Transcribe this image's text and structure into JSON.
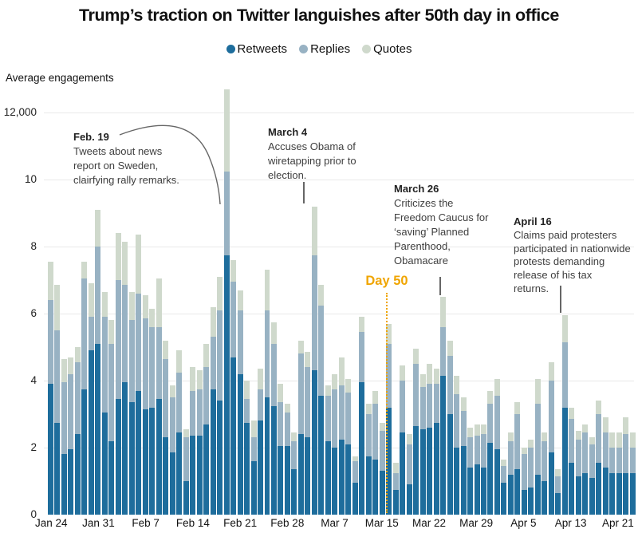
{
  "title": "Trump’s traction on Twitter languishes after 50th day in office",
  "legend": [
    {
      "label": "Retweets",
      "color": "#1e6d9c"
    },
    {
      "label": "Replies",
      "color": "#98b2c3"
    },
    {
      "label": "Quotes",
      "color": "#cfd9cc"
    }
  ],
  "y_axis": {
    "title": "Average engagements",
    "ticks": [
      {
        "value": 12000,
        "label": "12,000"
      },
      {
        "value": 10000,
        "label": "10"
      },
      {
        "value": 8000,
        "label": "8"
      },
      {
        "value": 6000,
        "label": "6"
      },
      {
        "value": 4000,
        "label": "4"
      },
      {
        "value": 2000,
        "label": "2"
      },
      {
        "value": 0,
        "label": "0"
      }
    ]
  },
  "x_axis": {
    "labels": [
      "Jan 24",
      "Jan 31",
      "Feb 7",
      "Feb 14",
      "Feb 21",
      "Feb 28",
      "Mar 7",
      "Mar 15",
      "Mar 22",
      "Mar 29",
      "Apr 5",
      "Apr 13",
      "Apr 21"
    ],
    "label_every_n_bars": 7
  },
  "annotations": [
    {
      "date": "Feb. 19",
      "text": "Tweets about news\nreport on Sweden,\nclairfying rally remarks.",
      "bar_index": 26
    },
    {
      "date": "March 4",
      "text": "Accuses Obama of\nwiretapping prior to\nelection.",
      "bar_index": 39
    },
    {
      "date": "March 26",
      "text": "Criticizes the\nFreedom Caucus for\n‘saving’ Planned\nParenthood,\nObamacare",
      "bar_index": 58
    },
    {
      "date": "April 16",
      "text": "Claims paid protesters\nparticipated in nationwide\nprotests demanding\nrelease of his tax\nreturns.",
      "bar_index": 76
    }
  ],
  "day50": {
    "label": "Day 50",
    "color": "#f0a500",
    "after_bar_index": 49
  },
  "chart_data": {
    "type": "bar",
    "stacked": true,
    "series": [
      "Retweets",
      "Replies",
      "Quotes"
    ],
    "title": "Trump’s traction on Twitter languishes after 50th day in office",
    "ylabel": "Average engagements",
    "ylim": [
      0,
      12800
    ],
    "grid": true,
    "legend_position": "top-center",
    "start_label": "Jan 24",
    "end_label": "Apr 21",
    "bars": [
      {
        "retweets": 3900,
        "replies": 2500,
        "quotes": 1150
      },
      {
        "retweets": 2750,
        "replies": 2750,
        "quotes": 1350
      },
      {
        "retweets": 1800,
        "replies": 2150,
        "quotes": 700
      },
      {
        "retweets": 1950,
        "replies": 2250,
        "quotes": 500
      },
      {
        "retweets": 2400,
        "replies": 2150,
        "quotes": 450
      },
      {
        "retweets": 3750,
        "replies": 3300,
        "quotes": 500
      },
      {
        "retweets": 4900,
        "replies": 1000,
        "quotes": 1000
      },
      {
        "retweets": 5100,
        "replies": 2900,
        "quotes": 1100
      },
      {
        "retweets": 3050,
        "replies": 2850,
        "quotes": 750
      },
      {
        "retweets": 2200,
        "replies": 2900,
        "quotes": 700
      },
      {
        "retweets": 3450,
        "replies": 3550,
        "quotes": 1400
      },
      {
        "retweets": 3950,
        "replies": 2900,
        "quotes": 1300
      },
      {
        "retweets": 3350,
        "replies": 2450,
        "quotes": 850
      },
      {
        "retweets": 3700,
        "replies": 2900,
        "quotes": 1750
      },
      {
        "retweets": 3150,
        "replies": 2700,
        "quotes": 700
      },
      {
        "retweets": 3200,
        "replies": 2400,
        "quotes": 550
      },
      {
        "retweets": 3450,
        "replies": 2150,
        "quotes": 1450
      },
      {
        "retweets": 2300,
        "replies": 2350,
        "quotes": 550
      },
      {
        "retweets": 1850,
        "replies": 1650,
        "quotes": 350
      },
      {
        "retweets": 2450,
        "replies": 1800,
        "quotes": 650
      },
      {
        "retweets": 1000,
        "replies": 1300,
        "quotes": 250
      },
      {
        "retweets": 2350,
        "replies": 1350,
        "quotes": 700
      },
      {
        "retweets": 2350,
        "replies": 1400,
        "quotes": 550
      },
      {
        "retweets": 2700,
        "replies": 1700,
        "quotes": 700
      },
      {
        "retweets": 3750,
        "replies": 1550,
        "quotes": 900
      },
      {
        "retweets": 3400,
        "replies": 2700,
        "quotes": 1000
      },
      {
        "retweets": 7750,
        "replies": 2500,
        "quotes": 2450
      },
      {
        "retweets": 4700,
        "replies": 2250,
        "quotes": 650
      },
      {
        "retweets": 4200,
        "replies": 1900,
        "quotes": 600
      },
      {
        "retweets": 2750,
        "replies": 700,
        "quotes": 550
      },
      {
        "retweets": 1600,
        "replies": 700,
        "quotes": 500
      },
      {
        "retweets": 2800,
        "replies": 950,
        "quotes": 600
      },
      {
        "retweets": 3500,
        "replies": 2600,
        "quotes": 1200
      },
      {
        "retweets": 3250,
        "replies": 1850,
        "quotes": 650
      },
      {
        "retweets": 2050,
        "replies": 1300,
        "quotes": 550
      },
      {
        "retweets": 2050,
        "replies": 1000,
        "quotes": 250
      },
      {
        "retweets": 1350,
        "replies": 850,
        "quotes": 250
      },
      {
        "retweets": 2400,
        "replies": 2400,
        "quotes": 400
      },
      {
        "retweets": 2300,
        "replies": 2100,
        "quotes": 450
      },
      {
        "retweets": 4300,
        "replies": 3450,
        "quotes": 1450
      },
      {
        "retweets": 3550,
        "replies": 2700,
        "quotes": 600
      },
      {
        "retweets": 2200,
        "replies": 1350,
        "quotes": 300
      },
      {
        "retweets": 2000,
        "replies": 1750,
        "quotes": 450
      },
      {
        "retweets": 2250,
        "replies": 1600,
        "quotes": 850
      },
      {
        "retweets": 2100,
        "replies": 1550,
        "quotes": 400
      },
      {
        "retweets": 950,
        "replies": 650,
        "quotes": 150
      },
      {
        "retweets": 3950,
        "replies": 1500,
        "quotes": 450
      },
      {
        "retweets": 1750,
        "replies": 1250,
        "quotes": 300
      },
      {
        "retweets": 1650,
        "replies": 1650,
        "quotes": 400
      },
      {
        "retweets": 1300,
        "replies": 1200,
        "quotes": 250
      },
      {
        "retweets": 3200,
        "replies": 1900,
        "quotes": 600
      },
      {
        "retweets": 750,
        "replies": 500,
        "quotes": 300
      },
      {
        "retweets": 2450,
        "replies": 1550,
        "quotes": 450
      },
      {
        "retweets": 900,
        "replies": 1200,
        "quotes": 300
      },
      {
        "retweets": 2650,
        "replies": 1850,
        "quotes": 450
      },
      {
        "retweets": 2550,
        "replies": 1250,
        "quotes": 400
      },
      {
        "retweets": 2600,
        "replies": 1300,
        "quotes": 600
      },
      {
        "retweets": 2750,
        "replies": 1150,
        "quotes": 450
      },
      {
        "retweets": 4150,
        "replies": 1450,
        "quotes": 900
      },
      {
        "retweets": 3000,
        "replies": 1750,
        "quotes": 450
      },
      {
        "retweets": 2000,
        "replies": 1600,
        "quotes": 550
      },
      {
        "retweets": 2050,
        "replies": 1050,
        "quotes": 400
      },
      {
        "retweets": 1400,
        "replies": 900,
        "quotes": 300
      },
      {
        "retweets": 1500,
        "replies": 850,
        "quotes": 350
      },
      {
        "retweets": 1400,
        "replies": 1000,
        "quotes": 300
      },
      {
        "retweets": 2150,
        "replies": 1150,
        "quotes": 400
      },
      {
        "retweets": 1950,
        "replies": 1600,
        "quotes": 500
      },
      {
        "retweets": 950,
        "replies": 500,
        "quotes": 200
      },
      {
        "retweets": 1200,
        "replies": 1000,
        "quotes": 250
      },
      {
        "retweets": 1350,
        "replies": 1650,
        "quotes": 350
      },
      {
        "retweets": 750,
        "replies": 1050,
        "quotes": 200
      },
      {
        "retweets": 800,
        "replies": 1200,
        "quotes": 250
      },
      {
        "retweets": 1200,
        "replies": 2100,
        "quotes": 750
      },
      {
        "retweets": 1000,
        "replies": 1200,
        "quotes": 250
      },
      {
        "retweets": 1850,
        "replies": 2150,
        "quotes": 550
      },
      {
        "retweets": 650,
        "replies": 500,
        "quotes": 200
      },
      {
        "retweets": 3200,
        "replies": 1950,
        "quotes": 800
      },
      {
        "retweets": 1550,
        "replies": 1300,
        "quotes": 350
      },
      {
        "retweets": 1150,
        "replies": 1100,
        "quotes": 250
      },
      {
        "retweets": 1250,
        "replies": 1200,
        "quotes": 250
      },
      {
        "retweets": 1100,
        "replies": 1000,
        "quotes": 200
      },
      {
        "retweets": 1550,
        "replies": 1450,
        "quotes": 400
      },
      {
        "retweets": 1400,
        "replies": 1050,
        "quotes": 450
      },
      {
        "retweets": 1250,
        "replies": 750,
        "quotes": 450
      },
      {
        "retweets": 1250,
        "replies": 750,
        "quotes": 450
      },
      {
        "retweets": 1250,
        "replies": 1150,
        "quotes": 500
      },
      {
        "retweets": 1250,
        "replies": 750,
        "quotes": 450
      }
    ]
  }
}
